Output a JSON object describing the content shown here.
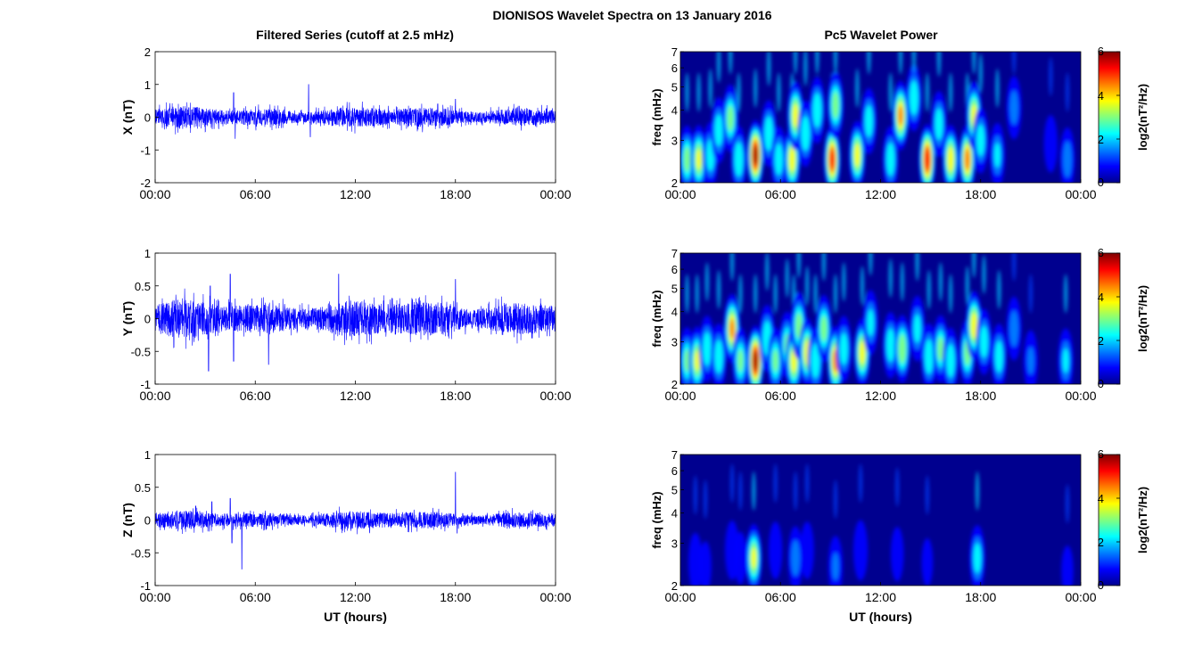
{
  "figure": {
    "title": "DIONISOS Wavelet Spectra on 13 January 2016",
    "left_title": "Filtered Series (cutoff at 2.5 mHz)",
    "right_title": "Pc5 Wavelet Power"
  },
  "colors": {
    "trace": "#0000ff",
    "spectrogram_background": "#00008f",
    "colormap": [
      "#00008f",
      "#0000ff",
      "#00ffff",
      "#ffff00",
      "#ff0000",
      "#800000"
    ]
  },
  "chart_data": [
    {
      "type": "line",
      "panel": "X",
      "ylabel": "X (nT)",
      "xlabel": "",
      "xlim": [
        0,
        24
      ],
      "ylim": [
        -2,
        2
      ],
      "yticks": [
        -2,
        -1,
        0,
        1,
        2
      ],
      "xticks": [
        0,
        6,
        12,
        18,
        24
      ],
      "xtick_labels": [
        "00:00",
        "06:00",
        "12:00",
        "18:00",
        "00:00"
      ],
      "series": [
        {
          "amplitude_nT": 0.25,
          "peaks": [
            [
              4.7,
              0.75
            ],
            [
              4.8,
              -0.65
            ],
            [
              9.2,
              1.0
            ],
            [
              9.3,
              -0.6
            ],
            [
              18.0,
              0.55
            ]
          ]
        }
      ]
    },
    {
      "type": "heatmap",
      "panel": "X",
      "ylabel": "freq (mHz)",
      "xlabel": "",
      "y_scale": "log",
      "xlim": [
        0,
        24
      ],
      "ylim": [
        2,
        7
      ],
      "yticks": [
        2,
        3,
        4,
        5,
        6,
        7
      ],
      "xticks": [
        0,
        6,
        12,
        18,
        24
      ],
      "xtick_labels": [
        "00:00",
        "06:00",
        "12:00",
        "18:00",
        "00:00"
      ],
      "colorbar": {
        "label": "log2(nT²/Hz)",
        "range": [
          0,
          6
        ],
        "ticks": [
          0,
          2,
          4,
          6
        ]
      },
      "bursts": [
        {
          "t": 0.4,
          "f": 2.5,
          "p": 3.5
        },
        {
          "t": 1.1,
          "f": 2.5,
          "p": 4.0
        },
        {
          "t": 1.8,
          "f": 2.6,
          "p": 3.0
        },
        {
          "t": 2.3,
          "f": 3.3,
          "p": 3.0
        },
        {
          "t": 3.0,
          "f": 3.7,
          "p": 3.5
        },
        {
          "t": 3.5,
          "f": 2.5,
          "p": 3.2
        },
        {
          "t": 4.5,
          "f": 2.6,
          "p": 5.8
        },
        {
          "t": 5.3,
          "f": 3.2,
          "p": 3.2
        },
        {
          "t": 5.9,
          "f": 2.5,
          "p": 3.0
        },
        {
          "t": 6.7,
          "f": 2.5,
          "p": 4.3
        },
        {
          "t": 6.9,
          "f": 3.8,
          "p": 4.2
        },
        {
          "t": 7.5,
          "f": 3.2,
          "p": 3.2
        },
        {
          "t": 8.2,
          "f": 4.0,
          "p": 3.2
        },
        {
          "t": 9.1,
          "f": 2.5,
          "p": 5.3
        },
        {
          "t": 9.3,
          "f": 4.2,
          "p": 3.6
        },
        {
          "t": 10.6,
          "f": 2.6,
          "p": 4.2
        },
        {
          "t": 11.3,
          "f": 3.6,
          "p": 3.0
        },
        {
          "t": 12.6,
          "f": 2.5,
          "p": 3.1
        },
        {
          "t": 13.2,
          "f": 3.8,
          "p": 4.6
        },
        {
          "t": 14.0,
          "f": 4.5,
          "p": 3.2
        },
        {
          "t": 14.8,
          "f": 2.5,
          "p": 5.5
        },
        {
          "t": 15.5,
          "f": 3.5,
          "p": 3.0
        },
        {
          "t": 16.2,
          "f": 2.5,
          "p": 4.3
        },
        {
          "t": 17.2,
          "f": 2.5,
          "p": 4.8
        },
        {
          "t": 17.6,
          "f": 3.8,
          "p": 4.1
        },
        {
          "t": 18.0,
          "f": 3.0,
          "p": 3.0
        },
        {
          "t": 19.0,
          "f": 2.6,
          "p": 2.6
        },
        {
          "t": 20.0,
          "f": 4.1,
          "p": 2.3
        },
        {
          "t": 22.2,
          "f": 2.9,
          "p": 1.6
        },
        {
          "t": 23.2,
          "f": 2.5,
          "p": 2.4
        }
      ]
    },
    {
      "type": "line",
      "panel": "Y",
      "ylabel": "Y (nT)",
      "xlabel": "",
      "xlim": [
        0,
        24
      ],
      "ylim": [
        -1,
        1
      ],
      "yticks": [
        -1,
        -0.5,
        0,
        0.5,
        1
      ],
      "xticks": [
        0,
        6,
        12,
        18,
        24
      ],
      "xtick_labels": [
        "00:00",
        "06:00",
        "12:00",
        "18:00",
        "00:00"
      ],
      "series": [
        {
          "amplitude_nT": 0.22,
          "peaks": [
            [
              3.3,
              0.5
            ],
            [
              3.2,
              -0.8
            ],
            [
              4.5,
              0.68
            ],
            [
              4.7,
              -0.65
            ],
            [
              6.8,
              -0.7
            ],
            [
              11.0,
              0.68
            ],
            [
              18.0,
              0.6
            ]
          ]
        }
      ]
    },
    {
      "type": "heatmap",
      "panel": "Y",
      "ylabel": "freq (mHz)",
      "xlabel": "",
      "y_scale": "log",
      "xlim": [
        0,
        24
      ],
      "ylim": [
        2,
        7
      ],
      "yticks": [
        2,
        3,
        4,
        5,
        6,
        7
      ],
      "xticks": [
        0,
        6,
        12,
        18,
        24
      ],
      "xtick_labels": [
        "00:00",
        "06:00",
        "12:00",
        "18:00",
        "00:00"
      ],
      "colorbar": {
        "label": "log2(nT²/Hz)",
        "range": [
          0,
          6
        ],
        "ticks": [
          0,
          2,
          4,
          6
        ]
      },
      "bursts": [
        {
          "t": 0.4,
          "f": 2.5,
          "p": 3.3
        },
        {
          "t": 1.0,
          "f": 2.5,
          "p": 4.0
        },
        {
          "t": 1.6,
          "f": 2.8,
          "p": 3.1
        },
        {
          "t": 2.3,
          "f": 2.6,
          "p": 3.1
        },
        {
          "t": 3.1,
          "f": 3.4,
          "p": 4.6
        },
        {
          "t": 3.6,
          "f": 2.5,
          "p": 3.3
        },
        {
          "t": 4.5,
          "f": 2.5,
          "p": 5.8
        },
        {
          "t": 5.2,
          "f": 3.1,
          "p": 3.2
        },
        {
          "t": 5.7,
          "f": 2.5,
          "p": 3.3
        },
        {
          "t": 6.4,
          "f": 2.9,
          "p": 3.3
        },
        {
          "t": 6.8,
          "f": 2.5,
          "p": 4.2
        },
        {
          "t": 7.1,
          "f": 3.5,
          "p": 3.5
        },
        {
          "t": 7.6,
          "f": 2.7,
          "p": 4.3
        },
        {
          "t": 8.1,
          "f": 2.5,
          "p": 3.2
        },
        {
          "t": 8.6,
          "f": 3.4,
          "p": 3.5
        },
        {
          "t": 9.3,
          "f": 2.5,
          "p": 4.8
        },
        {
          "t": 9.8,
          "f": 2.8,
          "p": 3.0
        },
        {
          "t": 10.9,
          "f": 2.7,
          "p": 4.2
        },
        {
          "t": 11.4,
          "f": 3.6,
          "p": 2.7
        },
        {
          "t": 12.6,
          "f": 2.9,
          "p": 3.1
        },
        {
          "t": 13.3,
          "f": 2.8,
          "p": 3.8
        },
        {
          "t": 14.2,
          "f": 3.4,
          "p": 2.8
        },
        {
          "t": 14.9,
          "f": 2.6,
          "p": 3.2
        },
        {
          "t": 15.6,
          "f": 2.8,
          "p": 3.4
        },
        {
          "t": 16.2,
          "f": 2.5,
          "p": 3.1
        },
        {
          "t": 17.2,
          "f": 2.7,
          "p": 3.5
        },
        {
          "t": 17.6,
          "f": 3.5,
          "p": 4.4
        },
        {
          "t": 18.2,
          "f": 3.0,
          "p": 3.0
        },
        {
          "t": 19.1,
          "f": 2.6,
          "p": 3.0
        },
        {
          "t": 20.0,
          "f": 3.4,
          "p": 2.4
        },
        {
          "t": 21.0,
          "f": 2.5,
          "p": 2.0
        },
        {
          "t": 23.1,
          "f": 2.5,
          "p": 2.6
        }
      ]
    },
    {
      "type": "line",
      "panel": "Z",
      "ylabel": "Z (nT)",
      "xlabel": "UT (hours)",
      "xlim": [
        0,
        24
      ],
      "ylim": [
        -1,
        1
      ],
      "yticks": [
        -1,
        -0.5,
        0,
        0.5,
        1
      ],
      "xticks": [
        0,
        6,
        12,
        18,
        24
      ],
      "xtick_labels": [
        "00:00",
        "06:00",
        "12:00",
        "18:00",
        "00:00"
      ],
      "series": [
        {
          "amplitude_nT": 0.11,
          "peaks": [
            [
              3.4,
              0.28
            ],
            [
              4.5,
              0.33
            ],
            [
              4.6,
              -0.35
            ],
            [
              5.2,
              -0.75
            ],
            [
              18.0,
              0.73
            ],
            [
              18.1,
              -0.2
            ]
          ]
        }
      ]
    },
    {
      "type": "heatmap",
      "panel": "Z",
      "ylabel": "freq (mHz)",
      "xlabel": "UT (hours)",
      "y_scale": "log",
      "xlim": [
        0,
        24
      ],
      "ylim": [
        2,
        7
      ],
      "yticks": [
        2,
        3,
        4,
        5,
        6,
        7
      ],
      "xticks": [
        0,
        6,
        12,
        18,
        24
      ],
      "xtick_labels": [
        "00:00",
        "06:00",
        "12:00",
        "18:00",
        "00:00"
      ],
      "colorbar": {
        "label": "log2(nT²/Hz)",
        "range": [
          0,
          6
        ],
        "ticks": [
          0,
          2,
          4,
          6
        ]
      },
      "bursts": [
        {
          "t": 0.9,
          "f": 2.5,
          "p": 1.7
        },
        {
          "t": 1.5,
          "f": 2.4,
          "p": 1.2
        },
        {
          "t": 3.1,
          "f": 2.8,
          "p": 1.8
        },
        {
          "t": 3.6,
          "f": 2.6,
          "p": 1.3
        },
        {
          "t": 4.4,
          "f": 2.6,
          "p": 4.0
        },
        {
          "t": 5.7,
          "f": 2.8,
          "p": 1.6
        },
        {
          "t": 6.9,
          "f": 2.6,
          "p": 2.4
        },
        {
          "t": 7.6,
          "f": 2.8,
          "p": 1.6
        },
        {
          "t": 9.3,
          "f": 2.4,
          "p": 2.0
        },
        {
          "t": 10.8,
          "f": 2.8,
          "p": 1.9
        },
        {
          "t": 13.0,
          "f": 2.7,
          "p": 1.4
        },
        {
          "t": 14.8,
          "f": 2.5,
          "p": 1.1
        },
        {
          "t": 17.8,
          "f": 2.6,
          "p": 2.9
        },
        {
          "t": 23.2,
          "f": 2.3,
          "p": 1.2
        }
      ]
    }
  ]
}
